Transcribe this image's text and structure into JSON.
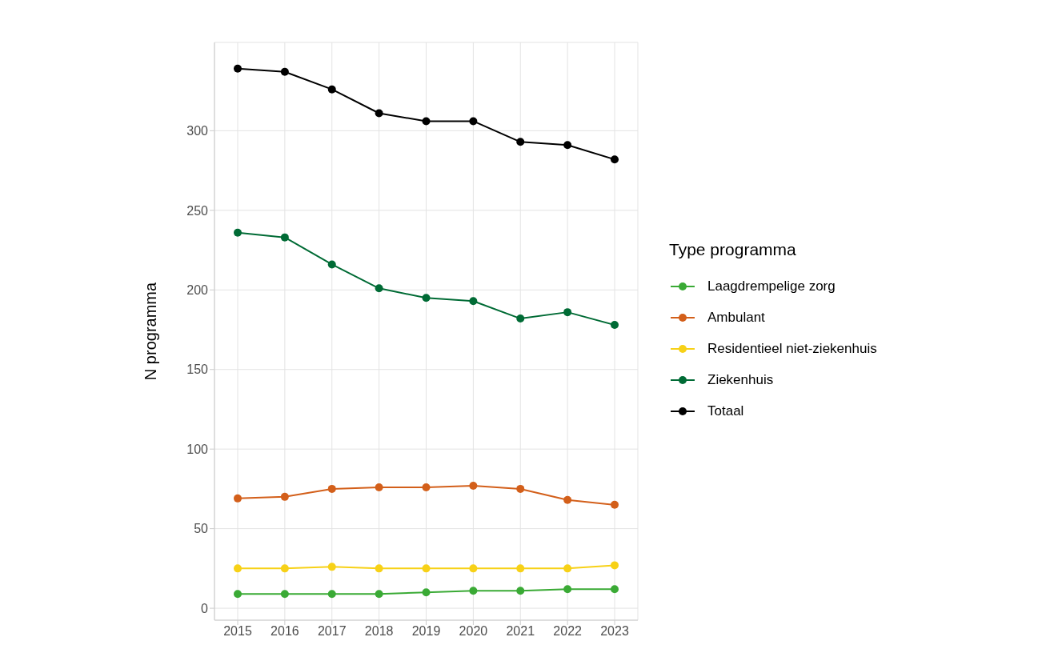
{
  "chart_data": {
    "type": "line",
    "ylabel": "N programma",
    "legend_title": "Type programma",
    "legend": "right",
    "grid": true,
    "marker": "circle",
    "line_style": "solid",
    "categories": [
      "2015",
      "2016",
      "2017",
      "2018",
      "2019",
      "2020",
      "2021",
      "2022",
      "2023"
    ],
    "ylim": [
      -7.5,
      355.5
    ],
    "yticks": [
      0,
      50,
      100,
      150,
      200,
      250,
      300
    ],
    "series": [
      {
        "name": "Laagdrempelige zorg",
        "color": "#3aaa35",
        "values": [
          9,
          9,
          9,
          9,
          10,
          11,
          11,
          12,
          12
        ]
      },
      {
        "name": "Ambulant",
        "color": "#d35f1a",
        "values": [
          69,
          70,
          75,
          76,
          76,
          77,
          75,
          68,
          65
        ]
      },
      {
        "name": "Residentieel niet-ziekenhuis",
        "color": "#f7d117",
        "values": [
          25,
          25,
          26,
          25,
          25,
          25,
          25,
          25,
          27
        ]
      },
      {
        "name": "Ziekenhuis",
        "color": "#006b35",
        "values": [
          236,
          233,
          216,
          201,
          195,
          193,
          182,
          186,
          178
        ]
      },
      {
        "name": "Totaal",
        "color": "#000000",
        "values": [
          339,
          337,
          326,
          311,
          306,
          306,
          293,
          291,
          282
        ]
      }
    ]
  }
}
